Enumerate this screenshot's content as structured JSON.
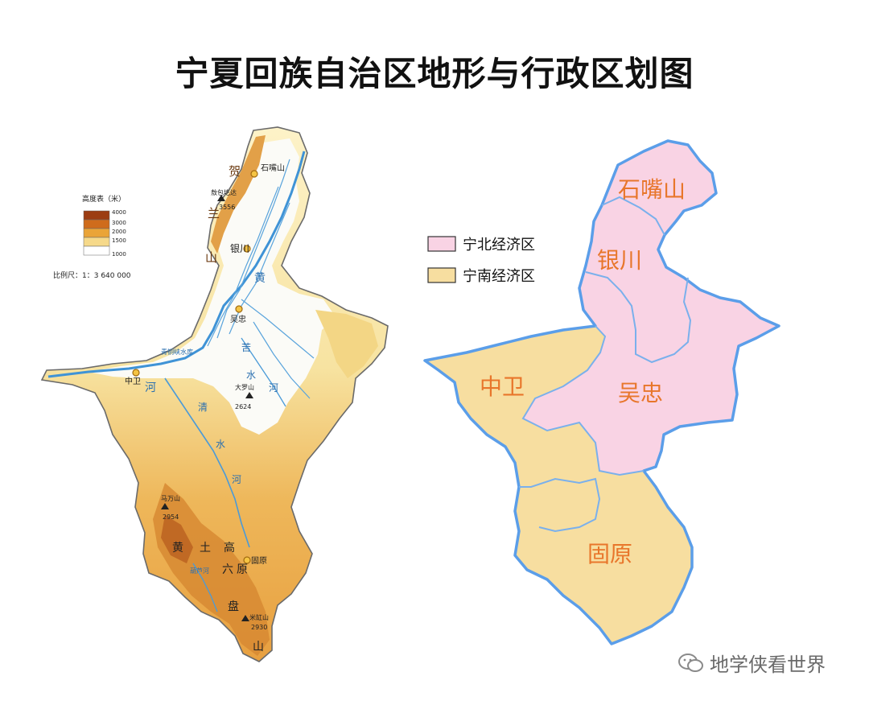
{
  "title": "宁夏回族自治区地形与行政区划图",
  "terrain_map": {
    "elevation_legend": {
      "title": "高度表（米）",
      "levels": [
        "4000",
        "3000",
        "2000",
        "1500",
        "1000"
      ],
      "colors": [
        "#9c3d12",
        "#cf6c1c",
        "#eaa438",
        "#f6d98a",
        "#ffffff"
      ]
    },
    "scale": "比例尺：1：3 640 000",
    "labels": {
      "helan": [
        "贺",
        "兰",
        "山"
      ],
      "shizuishan": "石嘴山",
      "aobaogeda": "敖包圪达",
      "aobaogeda_elev": "3556",
      "yinchuan": "银川",
      "wuzhong": "吴忠",
      "zhongwei": "中卫",
      "qingtongxia": "青铜峡水库",
      "huanghe": [
        "黄",
        "河"
      ],
      "kushui": [
        "苦",
        "水",
        "河"
      ],
      "qingshui": [
        "清",
        "水",
        "河"
      ],
      "daluoshan": "大罗山",
      "daluoshan_elev": "2624",
      "mawanshan": "马万山",
      "mawanshan_elev": "2954",
      "loess": [
        "黄",
        "土",
        "高",
        "原"
      ],
      "guyuan": "固原",
      "liupan": [
        "六",
        "盘",
        "山"
      ],
      "hulu": "葫芦河",
      "meihongshan": "米缸山",
      "meihongshan_elev": "2930"
    }
  },
  "admin_map": {
    "legend": [
      {
        "label": "宁北经济区",
        "color": "#f9d3e4"
      },
      {
        "label": "宁南经济区",
        "color": "#f7dea0"
      }
    ],
    "regions": {
      "shizuishan": "石嘴山",
      "yinchuan": "银川",
      "wuzhong": "吴忠",
      "zhongwei": "中卫",
      "guyuan": "固原"
    },
    "border_color": "#5b9ee9",
    "label_color": "#e8762b"
  },
  "watermark": "地学侠看世界"
}
